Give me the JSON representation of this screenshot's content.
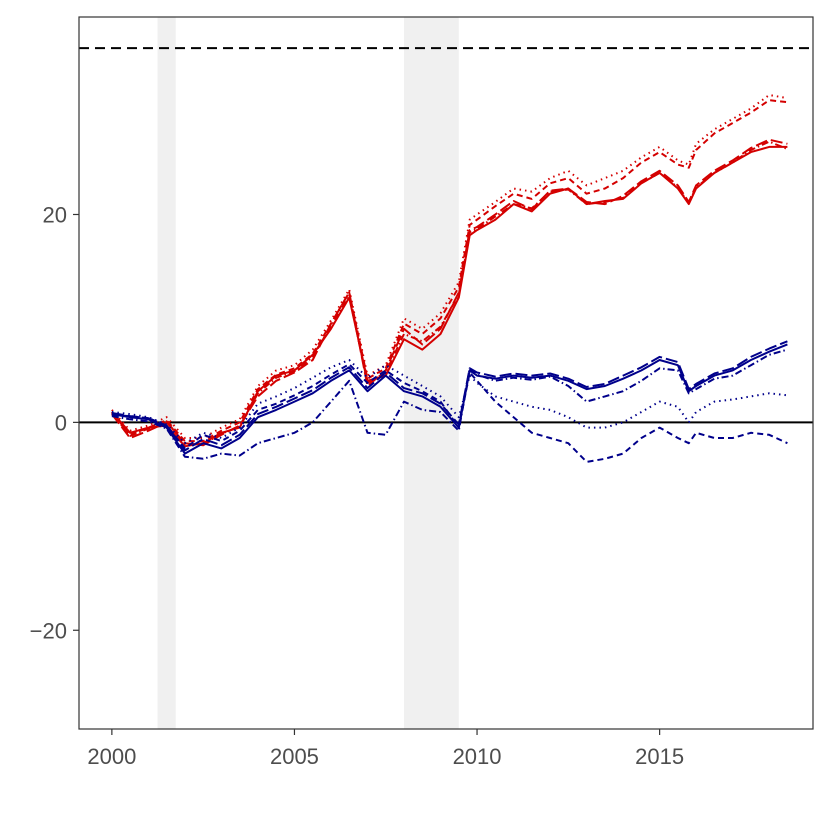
{
  "chart_data": {
    "type": "line",
    "title": "",
    "xlabel": "",
    "ylabel": "",
    "xlim": [
      1999.1,
      2019.2
    ],
    "ylim": [
      -29.5,
      39
    ],
    "x_ticks": [
      2000,
      2005,
      2010,
      2015
    ],
    "y_ticks": [
      -20,
      0,
      20
    ],
    "x_tick_labels": [
      "2000",
      "2005",
      "2010",
      "2015"
    ],
    "y_tick_labels": [
      "−20",
      "0",
      "20"
    ],
    "grid": false,
    "legend": "none",
    "recession_bands": [
      [
        2001.25,
        2001.75
      ],
      [
        2008.0,
        2009.5
      ]
    ],
    "reference_lines": [
      {
        "y": 0,
        "style": "solid",
        "color": "#000000"
      },
      {
        "y": 36,
        "style": "dashed",
        "color": "#000000"
      }
    ],
    "colors": {
      "red": "#d40000",
      "blue": "#00008b",
      "band": "#f0f0f0"
    },
    "series": [
      {
        "color": "#d40000",
        "dash": "solid",
        "x": [
          2000.0,
          2000.5,
          2001.0,
          2001.5,
          2002.0,
          2002.5,
          2003.0,
          2003.5,
          2004.0,
          2004.5,
          2005.0,
          2005.5,
          2006.0,
          2006.5,
          2007.0,
          2007.5,
          2008.0,
          2008.5,
          2009.0,
          2009.5,
          2009.8,
          2010.0,
          2010.5,
          2011.0,
          2011.5,
          2012.0,
          2012.5,
          2013.0,
          2013.5,
          2014.0,
          2014.5,
          2015.0,
          2015.5,
          2015.8,
          2016.0,
          2016.5,
          2017.0,
          2017.5,
          2018.0,
          2018.5
        ],
        "y": [
          1.0,
          -1.0,
          -0.5,
          -0.3,
          -2.3,
          -2.0,
          -1.0,
          -0.5,
          3.0,
          4.5,
          5.0,
          6.5,
          9.0,
          12.0,
          4.0,
          4.5,
          8.0,
          7.0,
          8.5,
          12.0,
          18.0,
          18.5,
          19.5,
          21.0,
          20.3,
          22.0,
          22.5,
          21.0,
          21.3,
          21.5,
          23.0,
          24.0,
          22.5,
          21.0,
          22.5,
          24.0,
          25.0,
          26.0,
          26.5,
          26.5
        ]
      },
      {
        "color": "#d40000",
        "dash": "long-dash",
        "x": [
          2000.0,
          2000.5,
          2001.0,
          2001.5,
          2002.0,
          2002.5,
          2003.0,
          2003.5,
          2004.0,
          2004.5,
          2005.0,
          2005.5,
          2006.0,
          2006.5,
          2007.0,
          2007.5,
          2008.0,
          2008.5,
          2009.0,
          2009.5,
          2009.8,
          2010.0,
          2010.5,
          2011.0,
          2011.5,
          2012.0,
          2012.5,
          2013.0,
          2013.5,
          2014.0,
          2014.5,
          2015.0,
          2015.5,
          2015.8,
          2016.0,
          2016.5,
          2017.0,
          2017.5,
          2018.0,
          2018.5
        ],
        "y": [
          0.8,
          -1.5,
          -0.8,
          0.0,
          -2.0,
          -2.2,
          -1.2,
          -0.3,
          2.5,
          4.0,
          4.8,
          6.0,
          9.5,
          12.5,
          3.5,
          5.0,
          9.0,
          7.5,
          9.0,
          12.5,
          18.5,
          18.8,
          20.0,
          21.3,
          20.5,
          22.3,
          22.5,
          21.2,
          21.0,
          21.8,
          23.2,
          24.2,
          22.8,
          21.2,
          22.8,
          24.2,
          25.2,
          26.4,
          27.2,
          26.8
        ]
      },
      {
        "color": "#d40000",
        "dash": "dot",
        "x": [
          2000.0,
          2000.5,
          2001.0,
          2001.5,
          2002.0,
          2002.5,
          2003.0,
          2003.5,
          2004.0,
          2004.5,
          2005.0,
          2005.5,
          2006.0,
          2006.5,
          2007.0,
          2007.5,
          2008.0,
          2008.5,
          2009.0,
          2009.5,
          2009.8,
          2010.0,
          2010.5,
          2011.0,
          2011.5,
          2012.0,
          2012.5,
          2013.0,
          2013.5,
          2014.0,
          2014.5,
          2015.0,
          2015.5,
          2015.8,
          2016.0,
          2016.5,
          2017.0,
          2017.5,
          2018.0,
          2018.5
        ],
        "y": [
          1.2,
          -0.8,
          -0.3,
          0.5,
          -1.5,
          -1.5,
          -0.5,
          0.3,
          3.5,
          5.0,
          5.5,
          7.0,
          9.8,
          12.8,
          4.5,
          5.5,
          10.0,
          9.0,
          10.5,
          13.5,
          19.5,
          20.0,
          21.2,
          22.5,
          22.2,
          23.5,
          24.2,
          22.8,
          23.5,
          24.2,
          25.5,
          26.5,
          25.2,
          24.8,
          26.8,
          28.2,
          29.2,
          30.2,
          31.5,
          31.2
        ]
      },
      {
        "color": "#d40000",
        "dash": "dash",
        "x": [
          2000.0,
          2000.5,
          2001.0,
          2001.5,
          2002.0,
          2002.5,
          2003.0,
          2003.5,
          2004.0,
          2004.5,
          2005.0,
          2005.5,
          2006.0,
          2006.5,
          2007.0,
          2007.5,
          2008.0,
          2008.5,
          2009.0,
          2009.5,
          2009.8,
          2010.0,
          2010.5,
          2011.0,
          2011.5,
          2012.0,
          2012.5,
          2013.0,
          2013.5,
          2014.0,
          2014.5,
          2015.0,
          2015.5,
          2015.8,
          2016.0,
          2016.5,
          2017.0,
          2017.5,
          2018.0,
          2018.5
        ],
        "y": [
          1.0,
          -1.2,
          -0.5,
          0.2,
          -1.8,
          -1.8,
          -0.8,
          0.0,
          3.2,
          4.6,
          5.2,
          6.6,
          9.5,
          12.5,
          4.2,
          5.2,
          9.5,
          8.5,
          10.0,
          13.0,
          19.0,
          19.5,
          20.8,
          22.0,
          21.5,
          23.0,
          23.5,
          22.0,
          22.5,
          23.5,
          25.0,
          26.0,
          24.8,
          24.5,
          26.2,
          27.8,
          28.8,
          29.8,
          31.0,
          30.8
        ]
      },
      {
        "color": "#d40000",
        "dash": "dash-dot",
        "x": [
          2000.0,
          2000.5,
          2001.0,
          2001.5,
          2002.0,
          2002.5,
          2003.0,
          2003.5,
          2004.0,
          2004.5,
          2005.0,
          2005.5,
          2006.0,
          2006.5,
          2007.0,
          2007.5,
          2008.0,
          2008.5,
          2009.0,
          2009.5,
          2009.8,
          2010.0,
          2010.5,
          2011.0,
          2011.5,
          2012.0,
          2012.5,
          2013.0,
          2013.5,
          2014.0,
          2014.5,
          2015.0,
          2015.5,
          2015.8,
          2016.0,
          2016.5,
          2017.0,
          2017.5,
          2018.0,
          2018.5
        ],
        "y": [
          0.9,
          -1.3,
          -0.6,
          0.1,
          -2.1,
          -2.1,
          -1.1,
          -0.4,
          2.8,
          4.3,
          4.9,
          6.3,
          9.2,
          12.2,
          3.8,
          4.8,
          8.5,
          7.8,
          9.2,
          12.3,
          18.3,
          18.6,
          19.8,
          21.0,
          20.6,
          22.2,
          22.4,
          21.0,
          21.2,
          21.6,
          23.0,
          24.0,
          22.6,
          21.1,
          22.6,
          24.0,
          25.0,
          26.2,
          27.0,
          26.3
        ]
      },
      {
        "color": "#00008b",
        "dash": "solid",
        "x": [
          2000.0,
          2000.5,
          2001.0,
          2001.5,
          2002.0,
          2002.5,
          2003.0,
          2003.5,
          2004.0,
          2004.5,
          2005.0,
          2005.5,
          2006.0,
          2006.5,
          2007.0,
          2007.5,
          2008.0,
          2008.5,
          2009.0,
          2009.5,
          2009.8,
          2010.0,
          2010.5,
          2011.0,
          2011.5,
          2012.0,
          2012.5,
          2013.0,
          2013.5,
          2014.0,
          2014.5,
          2015.0,
          2015.5,
          2015.8,
          2016.0,
          2016.5,
          2017.0,
          2017.5,
          2018.0,
          2018.5
        ],
        "y": [
          0.8,
          0.5,
          0.3,
          -0.5,
          -3.0,
          -2.0,
          -2.5,
          -1.5,
          0.5,
          1.2,
          2.0,
          2.8,
          4.0,
          5.0,
          3.0,
          4.5,
          3.0,
          2.5,
          1.5,
          -0.5,
          5.0,
          4.5,
          4.2,
          4.5,
          4.3,
          4.5,
          4.0,
          3.2,
          3.5,
          4.2,
          5.0,
          6.0,
          5.5,
          3.0,
          3.5,
          4.5,
          5.0,
          6.0,
          6.8,
          7.5
        ]
      },
      {
        "color": "#00008b",
        "dash": "long-dash",
        "x": [
          2000.0,
          2000.5,
          2001.0,
          2001.5,
          2002.0,
          2002.5,
          2003.0,
          2003.5,
          2004.0,
          2004.5,
          2005.0,
          2005.5,
          2006.0,
          2006.5,
          2007.0,
          2007.5,
          2008.0,
          2008.5,
          2009.0,
          2009.5,
          2009.8,
          2010.0,
          2010.5,
          2011.0,
          2011.5,
          2012.0,
          2012.5,
          2013.0,
          2013.5,
          2014.0,
          2014.5,
          2015.0,
          2015.5,
          2015.8,
          2016.0,
          2016.5,
          2017.0,
          2017.5,
          2018.0,
          2018.5
        ],
        "y": [
          0.9,
          0.6,
          0.4,
          -0.3,
          -2.7,
          -1.6,
          -2.2,
          -1.2,
          0.8,
          1.5,
          2.3,
          3.1,
          4.3,
          5.3,
          3.3,
          4.8,
          3.3,
          2.8,
          1.8,
          -0.2,
          5.2,
          4.8,
          4.4,
          4.7,
          4.5,
          4.7,
          4.2,
          3.4,
          3.7,
          4.5,
          5.3,
          6.3,
          5.8,
          3.2,
          3.7,
          4.7,
          5.2,
          6.3,
          7.1,
          7.8
        ]
      },
      {
        "color": "#00008b",
        "dash": "dot",
        "x": [
          2000.0,
          2000.5,
          2001.0,
          2001.5,
          2002.0,
          2002.5,
          2003.0,
          2003.5,
          2004.0,
          2004.5,
          2005.0,
          2005.5,
          2006.0,
          2006.5,
          2007.0,
          2007.5,
          2008.0,
          2008.5,
          2009.0,
          2009.5,
          2009.8,
          2010.0,
          2010.5,
          2011.0,
          2011.5,
          2012.0,
          2012.5,
          2013.0,
          2013.5,
          2014.0,
          2014.5,
          2015.0,
          2015.5,
          2015.8,
          2016.0,
          2016.5,
          2017.0,
          2017.5,
          2018.0,
          2018.5
        ],
        "y": [
          1.0,
          0.8,
          0.5,
          -0.2,
          -2.0,
          -1.0,
          -1.5,
          -0.5,
          1.8,
          2.5,
          3.3,
          4.3,
          5.3,
          6.0,
          4.3,
          5.5,
          4.5,
          3.5,
          2.5,
          0.5,
          4.5,
          3.8,
          2.5,
          2.0,
          1.5,
          1.2,
          0.5,
          -0.5,
          -0.5,
          0.0,
          1.0,
          2.0,
          1.5,
          0.0,
          1.0,
          2.0,
          2.2,
          2.5,
          2.8,
          2.6
        ]
      },
      {
        "color": "#00008b",
        "dash": "dash",
        "x": [
          2000.0,
          2000.5,
          2001.0,
          2001.5,
          2002.0,
          2002.5,
          2003.0,
          2003.5,
          2004.0,
          2004.5,
          2005.0,
          2005.5,
          2006.0,
          2006.5,
          2007.0,
          2007.5,
          2008.0,
          2008.5,
          2009.0,
          2009.5,
          2009.8,
          2010.0,
          2010.5,
          2011.0,
          2011.5,
          2012.0,
          2012.5,
          2013.0,
          2013.5,
          2014.0,
          2014.5,
          2015.0,
          2015.5,
          2015.8,
          2016.0,
          2016.5,
          2017.0,
          2017.5,
          2018.0,
          2018.5
        ],
        "y": [
          0.7,
          0.6,
          0.4,
          -0.3,
          -2.5,
          -1.2,
          -1.8,
          -0.8,
          1.2,
          1.8,
          2.6,
          3.5,
          4.6,
          5.6,
          3.8,
          5.0,
          3.8,
          3.0,
          2.0,
          -0.5,
          4.8,
          4.0,
          2.0,
          0.5,
          -1.0,
          -1.5,
          -2.0,
          -3.8,
          -3.5,
          -3.0,
          -1.5,
          -0.5,
          -1.5,
          -2.0,
          -1.0,
          -1.5,
          -1.5,
          -1.0,
          -1.2,
          -2.0
        ]
      },
      {
        "color": "#00008b",
        "dash": "dash-dot",
        "x": [
          2000.0,
          2000.5,
          2001.0,
          2001.5,
          2002.0,
          2002.5,
          2003.0,
          2003.5,
          2004.0,
          2004.5,
          2005.0,
          2005.5,
          2006.0,
          2006.5,
          2007.0,
          2007.5,
          2008.0,
          2008.5,
          2009.0,
          2009.5,
          2009.8,
          2010.0,
          2010.5,
          2011.0,
          2011.5,
          2012.0,
          2012.5,
          2013.0,
          2013.5,
          2014.0,
          2014.5,
          2015.0,
          2015.5,
          2015.8,
          2016.0,
          2016.5,
          2017.0,
          2017.5,
          2018.0,
          2018.5
        ],
        "y": [
          0.6,
          0.3,
          0.1,
          -0.6,
          -3.3,
          -3.5,
          -3.0,
          -3.2,
          -2.0,
          -1.5,
          -1.0,
          0.0,
          2.0,
          4.0,
          -1.0,
          -1.2,
          2.0,
          1.2,
          1.0,
          -0.8,
          5.2,
          4.6,
          4.0,
          4.3,
          4.1,
          4.4,
          3.5,
          2.0,
          2.5,
          3.0,
          4.0,
          5.2,
          5.0,
          2.8,
          3.2,
          4.2,
          4.5,
          5.5,
          6.5,
          7.0
        ]
      }
    ]
  }
}
